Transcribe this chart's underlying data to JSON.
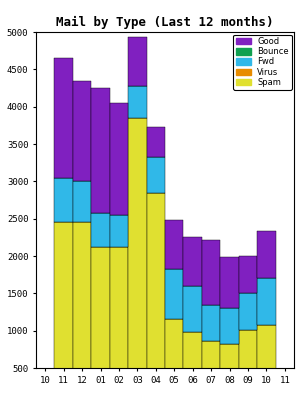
{
  "title": "Mail by Type (Last 12 months)",
  "months": [
    "10",
    "11",
    "12",
    "01",
    "02",
    "03",
    "04",
    "05",
    "06",
    "07",
    "08",
    "09",
    "10",
    "11"
  ],
  "spam": [
    0,
    2450,
    2450,
    2120,
    2120,
    3850,
    2850,
    1150,
    980,
    860,
    820,
    1010,
    1080,
    0
  ],
  "virus": [
    0,
    0,
    0,
    0,
    0,
    0,
    0,
    0,
    0,
    0,
    0,
    0,
    0,
    0
  ],
  "fwd": [
    0,
    600,
    550,
    450,
    430,
    430,
    480,
    680,
    620,
    480,
    480,
    490,
    630,
    0
  ],
  "bounce": [
    0,
    0,
    0,
    0,
    0,
    0,
    0,
    0,
    0,
    0,
    0,
    0,
    0,
    0
  ],
  "good": [
    0,
    1600,
    1350,
    1680,
    1500,
    650,
    400,
    650,
    650,
    880,
    680,
    500,
    620,
    0
  ],
  "colors": {
    "spam": "#e0e030",
    "virus": "#e88c00",
    "fwd": "#30b8e8",
    "bounce": "#10a050",
    "good": "#8020c0"
  },
  "ylim": [
    500,
    5000
  ],
  "yticks": [
    500,
    1000,
    1500,
    2000,
    2500,
    3000,
    3500,
    4000,
    4500,
    5000
  ],
  "legend_labels": [
    "Good",
    "Bounce",
    "Fwd",
    "Virus",
    "Spam"
  ],
  "legend_colors": [
    "#8020c0",
    "#10a050",
    "#30b8e8",
    "#e88c00",
    "#e0e030"
  ]
}
